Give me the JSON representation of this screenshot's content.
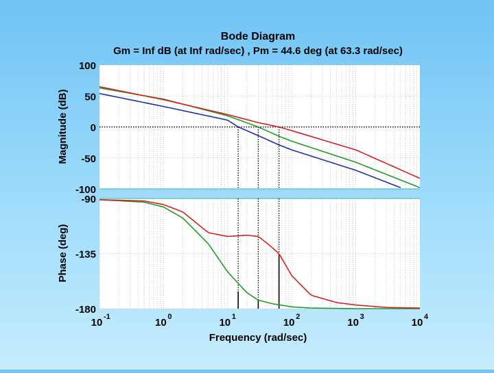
{
  "chart_data": {
    "type": "line",
    "title": "Bode Diagram",
    "subtitle": "Gm = Inf dB (at Inf rad/sec) ,  Pm = 44.6 deg (at 63.3 rad/sec)",
    "xlabel": "Frequency  (rad/sec)",
    "x_scale": "log",
    "xlim": [
      0.1,
      10000
    ],
    "x_ticks": [
      {
        "base": "10",
        "exp": "-1",
        "value": 0.1
      },
      {
        "base": "10",
        "exp": "0",
        "value": 1
      },
      {
        "base": "10",
        "exp": "1",
        "value": 10
      },
      {
        "base": "10",
        "exp": "2",
        "value": 100
      },
      {
        "base": "10",
        "exp": "3",
        "value": 1000
      },
      {
        "base": "10",
        "exp": "4",
        "value": 10000
      }
    ],
    "magnitude": {
      "ylabel": "Magnitude (dB)",
      "ylim": [
        -100,
        100
      ],
      "y_ticks": [
        "100",
        "50",
        "0",
        "-50",
        "-100"
      ],
      "y_tick_values": [
        100,
        50,
        0,
        -50,
        -100
      ],
      "reference_line": 0,
      "series": [
        {
          "name": "blue",
          "color": "#1a2fb0",
          "x": [
            0.1,
            1,
            10,
            14.6,
            30,
            63.3,
            100,
            1000,
            5000
          ],
          "y": [
            54,
            33,
            11,
            0,
            -14,
            -29,
            -37,
            -70,
            -98
          ]
        },
        {
          "name": "green",
          "color": "#1f9a2a",
          "x": [
            0.1,
            1,
            10,
            30,
            63.3,
            100,
            1000,
            10000
          ],
          "y": [
            63,
            45,
            18,
            0,
            -15,
            -23,
            -57,
            -98
          ]
        },
        {
          "name": "red",
          "color": "#d42020",
          "x": [
            0.1,
            1,
            10,
            30,
            63.3,
            100,
            1000,
            10000
          ],
          "y": [
            65,
            44,
            20,
            7,
            0,
            -6,
            -37,
            -83
          ]
        }
      ]
    },
    "phase": {
      "ylabel": "Phase (deg)",
      "ylim": [
        -180,
        -90
      ],
      "y_ticks": [
        "-90",
        "-135",
        "-180"
      ],
      "y_tick_values": [
        -90,
        -135,
        -180
      ],
      "series": [
        {
          "name": "green",
          "color": "#1f9a2a",
          "x": [
            0.1,
            0.5,
            1,
            2,
            5,
            10,
            20,
            30,
            50,
            100,
            200,
            1000,
            10000
          ],
          "y": [
            -91,
            -93,
            -97,
            -106,
            -127,
            -150,
            -167,
            -173,
            -176,
            -178.5,
            -179.5,
            -180,
            -180
          ]
        },
        {
          "name": "red",
          "color": "#d42020",
          "x": [
            0.1,
            0.5,
            1,
            2,
            5,
            10,
            20,
            30,
            40,
            63.3,
            100,
            200,
            500,
            1000,
            3000,
            10000
          ],
          "y": [
            -91,
            -92,
            -95,
            -101,
            -118,
            -121,
            -120,
            -121,
            -126,
            -135,
            -153,
            -169,
            -175,
            -177,
            -179,
            -179.5
          ]
        }
      ]
    },
    "crossover_markers": [
      {
        "color": "#1a2fb0",
        "x": 14.6,
        "phase": -166
      },
      {
        "color": "#1f9a2a",
        "x": 30,
        "phase": -173
      },
      {
        "color": "#d42020",
        "x": 63.3,
        "phase": -135
      }
    ]
  }
}
